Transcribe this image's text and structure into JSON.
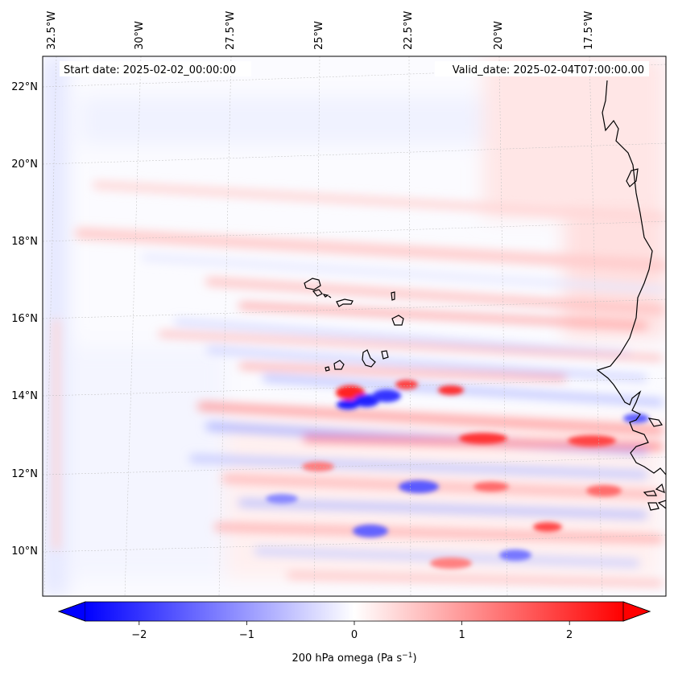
{
  "map": {
    "start_date": "Start date: 2025-02-02_00:00:00",
    "valid_date": "Valid_date: 2025-02-04T07:00:00.00",
    "lon_labels": [
      "32.5°W",
      "30°W",
      "27.5°W",
      "25°W",
      "22.5°W",
      "20°W",
      "17.5°W"
    ],
    "lat_labels": [
      "22°N",
      "20°N",
      "18°N",
      "16°N",
      "14°N",
      "12°N",
      "10°N"
    ],
    "colors": {
      "positive": "#ff0000",
      "negative": "#0000ff",
      "neutral": "#ffffff",
      "coast": "#000000"
    }
  },
  "colorbar": {
    "label": "200 hPa omega (Pa s",
    "label_sup": "−1",
    "label_close": ")",
    "range": [
      -2.5,
      2.5
    ],
    "ticks": [
      "−2",
      "−1",
      "0",
      "1",
      "2"
    ],
    "tick_values": [
      -2,
      -1,
      0,
      1,
      2
    ]
  }
}
